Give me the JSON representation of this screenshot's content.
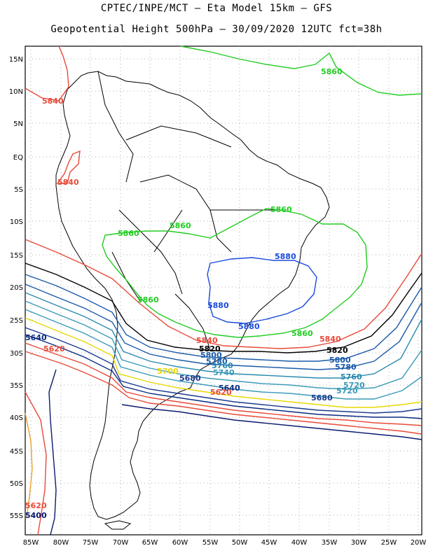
{
  "title_line1": "CPTEC/INPE/MCT –  Eta Model 15km – GFS",
  "title_line2": "Geopotential Height 500hPa – 30/09/2020 12UTC fct=38h",
  "lat_ticks": [
    "15N",
    "10N",
    "5N",
    "EQ",
    "5S",
    "10S",
    "15S",
    "20S",
    "25S",
    "30S",
    "35S",
    "40S",
    "45S",
    "50S",
    "55S"
  ],
  "lon_ticks": [
    "85W",
    "80W",
    "75W",
    "70W",
    "65W",
    "60W",
    "55W",
    "50W",
    "45W",
    "40W",
    "35W",
    "30W",
    "25W",
    "20W"
  ],
  "colors": {
    "c5400": "#0a1a6e",
    "c5620": "#e84a3a",
    "c5640": "#e84a3a",
    "c5660": "#0a2a80",
    "c5680": "#1a3a90",
    "c5700": "#e8e000",
    "c5720": "#3a7ab0",
    "c5740": "#3a9ab8",
    "c5760": "#2a6aa0",
    "c5780": "#1a5aa8",
    "c5800": "#3a90c8",
    "c5820": "#000000",
    "c5840": "#e84a3a",
    "c5860": "#22cc22",
    "c5880": "#1a4adc",
    "coast": "#000000",
    "grid": "#888888"
  },
  "contour_labels": [
    {
      "text": "5860",
      "color": "#22cc22"
    },
    {
      "text": "5840",
      "color": "#e84a3a"
    },
    {
      "text": "5840",
      "color": "#e84a3a"
    },
    {
      "text": "5860",
      "color": "#22cc22"
    },
    {
      "text": "5860",
      "color": "#22cc22"
    },
    {
      "text": "5860",
      "color": "#22cc22"
    },
    {
      "text": "5880",
      "color": "#1a4adc"
    },
    {
      "text": "5880",
      "color": "#1a4adc"
    },
    {
      "text": "5880",
      "color": "#1a4adc"
    },
    {
      "text": "5860",
      "color": "#22cc22"
    },
    {
      "text": "5860",
      "color": "#22cc22"
    },
    {
      "text": "5840",
      "color": "#e84a3a"
    },
    {
      "text": "5840",
      "color": "#e84a3a"
    },
    {
      "text": "5820",
      "color": "#000000"
    },
    {
      "text": "5820",
      "color": "#000000"
    },
    {
      "text": "5800",
      "color": "#1a5aa8"
    },
    {
      "text": "5800",
      "color": "#1a5aa8"
    },
    {
      "text": "5780",
      "color": "#1a5aa8"
    },
    {
      "text": "5780",
      "color": "#1a5aa8"
    },
    {
      "text": "5760",
      "color": "#2a8ab0"
    },
    {
      "text": "5760",
      "color": "#2a8ab0"
    },
    {
      "text": "5740",
      "color": "#3a9ab8"
    },
    {
      "text": "5720",
      "color": "#3a9ab8"
    },
    {
      "text": "5720",
      "color": "#3a9ab8"
    },
    {
      "text": "5700",
      "color": "#e8d800"
    },
    {
      "text": "5680",
      "color": "#1a3a90"
    },
    {
      "text": "5680",
      "color": "#1a3a90"
    },
    {
      "text": "5640",
      "color": "#0a2a80"
    },
    {
      "text": "5620",
      "color": "#e84a3a"
    },
    {
      "text": "5640",
      "color": "#0a2a80"
    },
    {
      "text": "5620",
      "color": "#e84a3a"
    },
    {
      "text": "5620",
      "color": "#e84a3a"
    },
    {
      "text": "5400",
      "color": "#0a1a6e"
    }
  ]
}
